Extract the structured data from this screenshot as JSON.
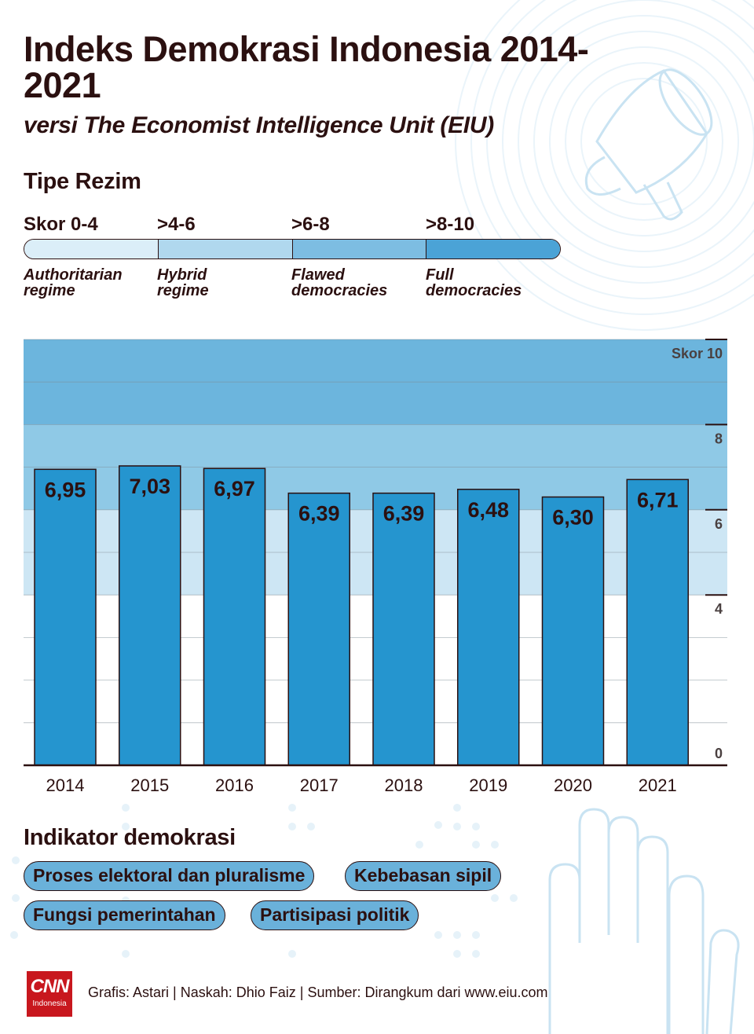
{
  "header": {
    "title": "Indeks Demokrasi Indonesia 2014-2021",
    "subtitle": "versi The Economist Intelligence Unit (EIU)"
  },
  "regime": {
    "heading": "Tipe Rezim",
    "categories": [
      {
        "range": "Skor 0-4",
        "name_line1": "Authoritarian",
        "name_line2": "regime",
        "color": "#dbeef8"
      },
      {
        "range": ">4-6",
        "name_line1": "Hybrid",
        "name_line2": "regime",
        "color": "#b0d8ee"
      },
      {
        "range": ">6-8",
        "name_line1": "Flawed",
        "name_line2": "democracies",
        "color": "#7dbde2"
      },
      {
        "range": ">8-10",
        "name_line1": "Full",
        "name_line2": "democracies",
        "color": "#4ba3d6"
      }
    ]
  },
  "chart_data": {
    "type": "bar",
    "categories": [
      "2014",
      "2015",
      "2016",
      "2017",
      "2018",
      "2019",
      "2020",
      "2021"
    ],
    "values": [
      6.95,
      7.03,
      6.97,
      6.39,
      6.39,
      6.48,
      6.3,
      6.71
    ],
    "value_labels": [
      "6,95",
      "7,03",
      "6,97",
      "6,39",
      "6,39",
      "6,48",
      "6,30",
      "6,71"
    ],
    "ylim": [
      0,
      10
    ],
    "y_ticks": [
      {
        "value": 10,
        "label": "Skor 10"
      },
      {
        "value": 8,
        "label": "8"
      },
      {
        "value": 6,
        "label": "6"
      },
      {
        "value": 4,
        "label": "4"
      },
      {
        "value": 0,
        "label": "0"
      }
    ],
    "grid": true,
    "bar_color": "#2595cf",
    "band_colors": [
      "#ffffff",
      "#cde6f4",
      "#8fc9e6",
      "#6cb5dd"
    ]
  },
  "indicators": {
    "heading": "Indikator demokrasi",
    "items": [
      "Proses elektoral dan pluralisme",
      "Kebebasan sipil",
      "Fungsi pemerintahan",
      "Partisipasi politik"
    ]
  },
  "footer": {
    "logo_main": "CNN",
    "logo_sub": "Indonesia",
    "credits": "Grafis: Astari | Naskah: Dhio Faiz | Sumber: Dirangkum dari www.eiu.com"
  }
}
